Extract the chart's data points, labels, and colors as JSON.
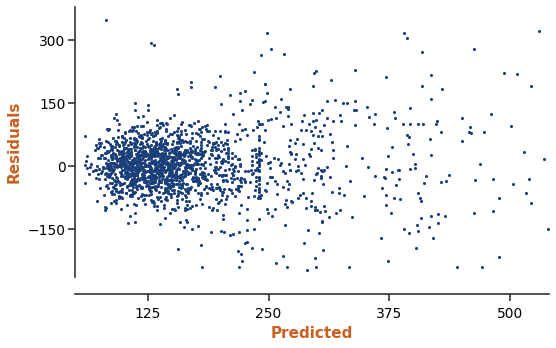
{
  "title": "",
  "xlabel": "Predicted",
  "ylabel": "Residuals",
  "dot_color": "#1A3F7A",
  "dot_size": 5,
  "xlim": [
    50,
    540
  ],
  "ylim": [
    -265,
    380
  ],
  "xticks": [
    125,
    250,
    375,
    500
  ],
  "yticks": [
    -150,
    0,
    150,
    300
  ],
  "label_color": "#C86020",
  "n_points": 1728,
  "seed": 42,
  "figsize": [
    5.56,
    3.48
  ],
  "dpi": 100
}
